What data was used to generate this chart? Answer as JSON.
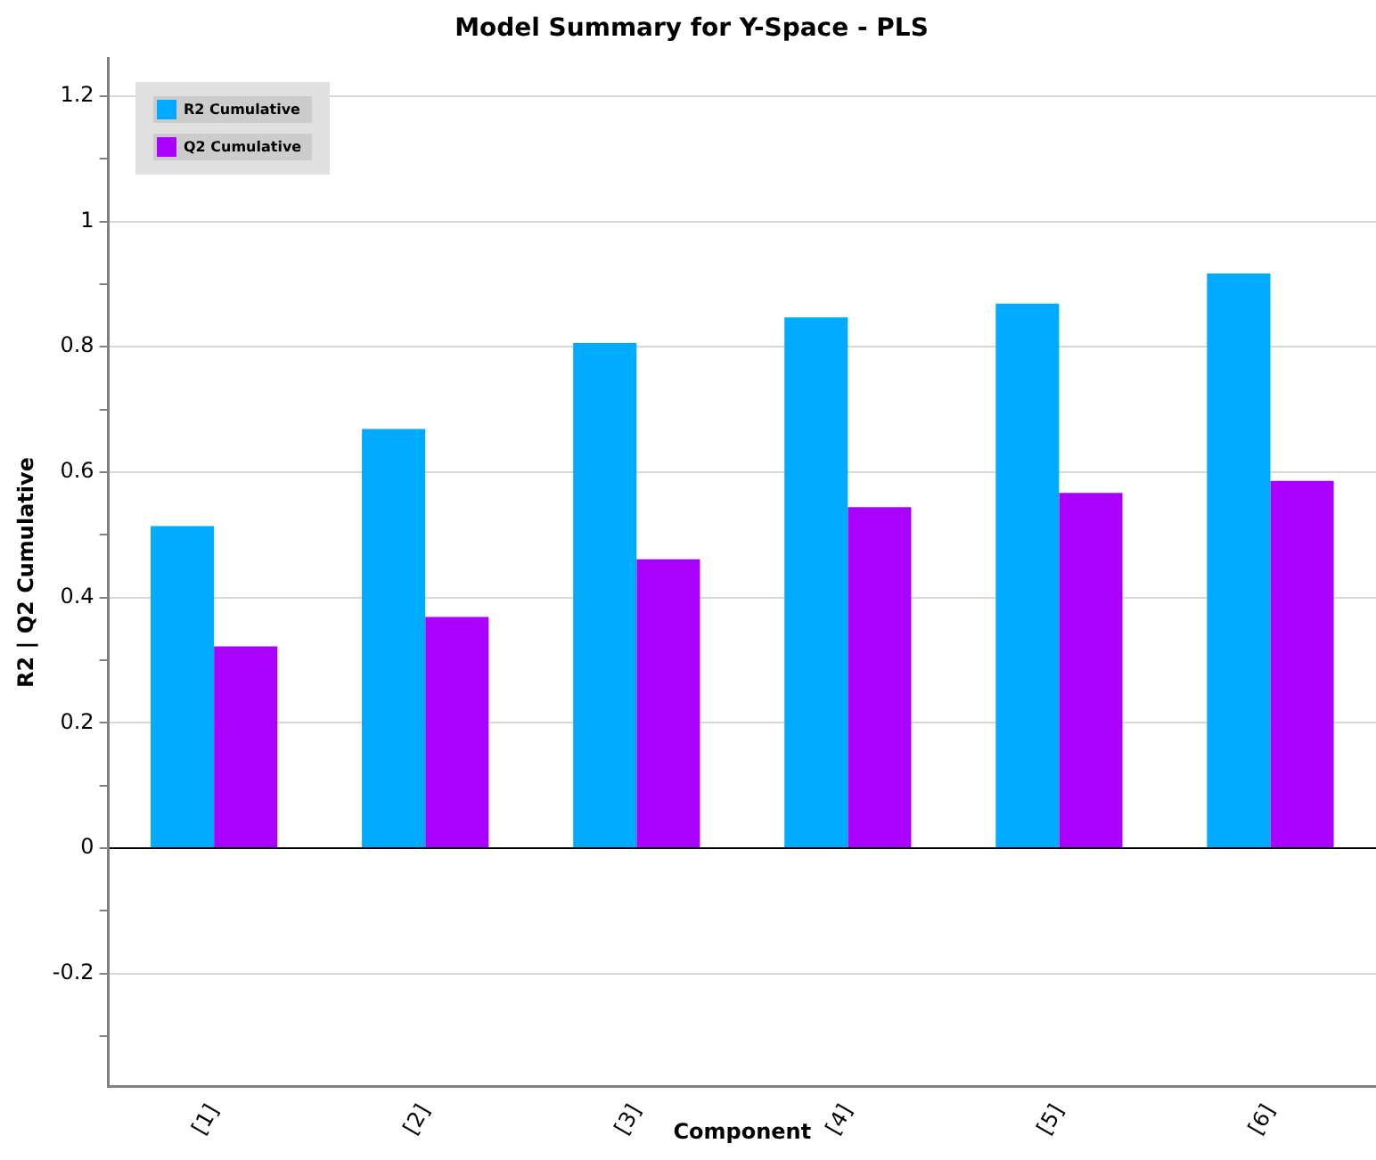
{
  "chart_data": {
    "type": "bar",
    "title": "Model Summary for Y-Space - PLS",
    "xlabel": "Component",
    "ylabel": "R2 | Q2 Cumulative",
    "categories": [
      "[1]",
      "[2]",
      "[3]",
      "[4]",
      "[5]",
      "[6]"
    ],
    "series": [
      {
        "name": "R2 Cumulative",
        "color": "#00aaff",
        "values": [
          0.514,
          0.669,
          0.806,
          0.847,
          0.869,
          0.917
        ]
      },
      {
        "name": "Q2 Cumulative",
        "color": "#aa00ff",
        "values": [
          0.322,
          0.369,
          0.461,
          0.544,
          0.567,
          0.586
        ]
      }
    ],
    "ylim": [
      -0.38,
      1.26
    ],
    "yticks": [
      {
        "value": -0.3,
        "label": null
      },
      -0.2,
      {
        "value": -0.1,
        "label": null
      },
      0,
      {
        "value": 0.1,
        "label": null
      },
      0.2,
      {
        "value": 0.3,
        "label": null
      },
      0.4,
      {
        "value": 0.5,
        "label": null
      },
      0.6,
      {
        "value": 0.7,
        "label": null
      },
      0.8,
      {
        "value": 0.9,
        "label": null
      },
      1,
      {
        "value": 1.1,
        "label": null
      },
      1.2
    ],
    "grid": "y",
    "legend": "top left"
  }
}
